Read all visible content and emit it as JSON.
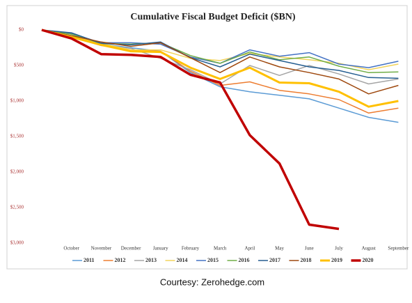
{
  "chart_data": {
    "type": "line",
    "title": "Cumulative Fiscal Budget Deficit ($BN)",
    "footer": "Courtesy: Zerohedge.com",
    "categories": [
      null,
      "October",
      "November",
      "December",
      "January",
      "February",
      "March",
      "April",
      "May",
      "June",
      "July",
      "August",
      "September"
    ],
    "ylim": [
      0,
      3000
    ],
    "y_inverted": true,
    "yticks": [
      {
        "value": 0,
        "label": "$0"
      },
      {
        "value": 500,
        "label": "$500"
      },
      {
        "value": 1000,
        "label": "$1,000"
      },
      {
        "value": 1500,
        "label": "$1,500"
      },
      {
        "value": 2000,
        "label": "$2,000"
      },
      {
        "value": 2500,
        "label": "$2,500"
      },
      {
        "value": 3000,
        "label": "$3,000"
      }
    ],
    "grid": false,
    "legend": "bottom",
    "series": [
      {
        "name": "2011",
        "color": "#5b9bd5",
        "line_width": 1.5,
        "values": [
          0,
          60,
          200,
          250,
          300,
          600,
          800,
          870,
          920,
          970,
          1100,
          1230,
          1300
        ]
      },
      {
        "name": "2012",
        "color": "#ed7d31",
        "line_width": 1.5,
        "values": [
          0,
          100,
          220,
          280,
          300,
          580,
          780,
          730,
          850,
          900,
          980,
          1170,
          1100
        ]
      },
      {
        "name": "2013",
        "color": "#a5a5a5",
        "line_width": 1.5,
        "values": [
          0,
          90,
          210,
          260,
          400,
          560,
          760,
          500,
          640,
          500,
          620,
          760,
          690
        ]
      },
      {
        "name": "2014",
        "color": "#f2d45c",
        "line_width": 1.5,
        "values": [
          0,
          80,
          190,
          280,
          280,
          400,
          430,
          330,
          380,
          420,
          470,
          560,
          480
        ]
      },
      {
        "name": "2015",
        "color": "#4472c4",
        "line_width": 1.5,
        "values": [
          0,
          50,
          180,
          180,
          200,
          380,
          470,
          280,
          370,
          320,
          480,
          530,
          440
        ]
      },
      {
        "name": "2016",
        "color": "#70ad47",
        "line_width": 1.5,
        "values": [
          0,
          60,
          190,
          200,
          180,
          360,
          470,
          310,
          420,
          380,
          510,
          600,
          590
        ]
      },
      {
        "name": "2017",
        "color": "#255e91",
        "line_width": 1.5,
        "values": [
          0,
          40,
          190,
          210,
          170,
          390,
          520,
          340,
          430,
          520,
          570,
          670,
          680
        ]
      },
      {
        "name": "2018",
        "color": "#9e480e",
        "line_width": 1.5,
        "values": [
          0,
          80,
          170,
          230,
          180,
          390,
          600,
          380,
          520,
          600,
          690,
          900,
          780
        ]
      },
      {
        "name": "2019",
        "color": "#ffc000",
        "line_width": 3,
        "values": [
          0,
          100,
          210,
          300,
          310,
          530,
          690,
          530,
          740,
          750,
          870,
          1080,
          1000
        ]
      },
      {
        "name": "2020",
        "color": "#c00000",
        "line_width": 3.5,
        "values": [
          0,
          120,
          340,
          350,
          380,
          630,
          740,
          1480,
          1880,
          2740,
          2800,
          null,
          null
        ]
      }
    ]
  }
}
